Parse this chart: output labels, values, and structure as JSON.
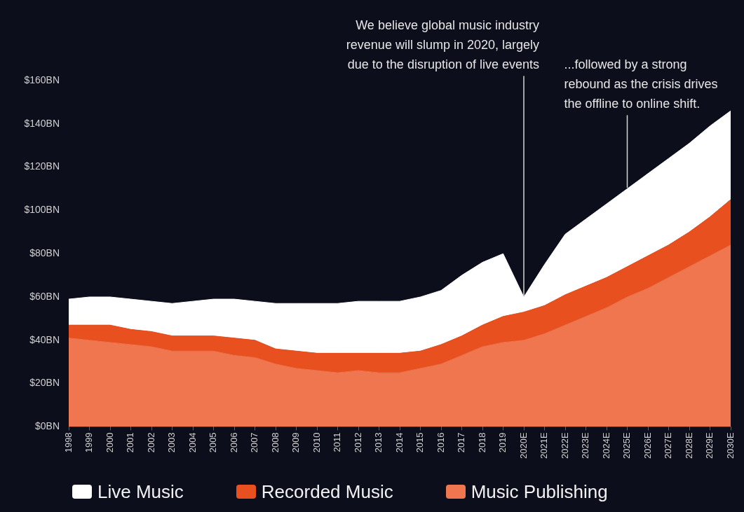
{
  "chart_data": {
    "type": "area",
    "stacked": true,
    "categories": [
      "1998",
      "1999",
      "2000",
      "2001",
      "2002",
      "2003",
      "2004",
      "2005",
      "2006",
      "2007",
      "2008",
      "2009",
      "2010",
      "2011",
      "2012",
      "2013",
      "2014",
      "2015",
      "2016",
      "2017",
      "2018",
      "2019",
      "2020E",
      "2021E",
      "2022E",
      "2023E",
      "2024E",
      "2025E",
      "2026E",
      "2027E",
      "2028E",
      "2029E",
      "2030E"
    ],
    "series": [
      {
        "name": "Music Publishing",
        "color": "#f0764f",
        "values": [
          41,
          40,
          39,
          38,
          37,
          35,
          35,
          35,
          33,
          32,
          29,
          27,
          26,
          25,
          26,
          25,
          25,
          27,
          29,
          33,
          37,
          39,
          40,
          43,
          47,
          51,
          55,
          60,
          64,
          69,
          74,
          79,
          84
        ]
      },
      {
        "name": "Recorded Music",
        "color": "#e9501f",
        "values": [
          6,
          7,
          8,
          7,
          7,
          7,
          7,
          7,
          8,
          8,
          7,
          8,
          8,
          9,
          8,
          9,
          9,
          8,
          9,
          9,
          10,
          12,
          13,
          13,
          14,
          14,
          14,
          14,
          15,
          15,
          16,
          18,
          21
        ]
      },
      {
        "name": "Live Music",
        "color": "#ffffff",
        "values": [
          12,
          13,
          13,
          14,
          14,
          15,
          16,
          17,
          18,
          18,
          21,
          22,
          23,
          23,
          24,
          24,
          24,
          25,
          25,
          28,
          29,
          29,
          7,
          19,
          28,
          31,
          34,
          36,
          38,
          40,
          41,
          42,
          41
        ]
      }
    ],
    "ylim": [
      0,
      160
    ],
    "yticks": [
      {
        "value": 0,
        "label": "$0BN"
      },
      {
        "value": 20,
        "label": "$20BN"
      },
      {
        "value": 40,
        "label": "$40BN"
      },
      {
        "value": 60,
        "label": "$60BN"
      },
      {
        "value": 80,
        "label": "$80BN"
      },
      {
        "value": 100,
        "label": "$100BN"
      },
      {
        "value": 120,
        "label": "$120BN"
      },
      {
        "value": 140,
        "label": "$140BN"
      },
      {
        "value": 160,
        "label": "$160BN"
      }
    ],
    "legend": "bottom",
    "marker": "none",
    "annotations": [
      {
        "text": "We believe global music industry revenue will slump in 2020, largely due to the disruption of live events",
        "x": "2020E",
        "y": 60
      },
      {
        "text": "...followed by a strong rebound as the crisis drives the offline to online shift.",
        "x": "2025E",
        "y": 110
      }
    ]
  }
}
